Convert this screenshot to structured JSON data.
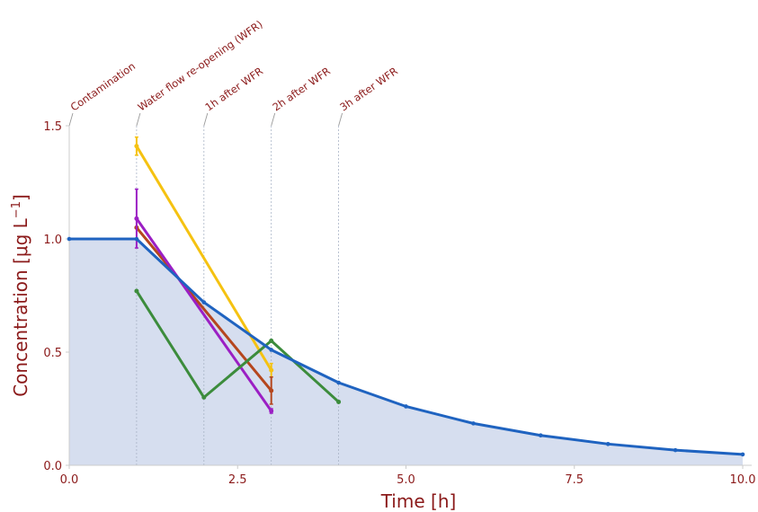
{
  "chart_data": {
    "type": "line",
    "title": "",
    "xlabel": "Time",
    "xlabel_unit": "h",
    "ylabel": "Concentration",
    "ylabel_unit": "μg L",
    "ylabel_exponent": "−1",
    "xlim": [
      0,
      10
    ],
    "ylim": [
      0,
      1.5
    ],
    "xticks": [
      "0.0",
      "2.5",
      "5.0",
      "7.5",
      "10.0"
    ],
    "yticks": [
      "0.0",
      "0.5",
      "1.0",
      "1.5"
    ],
    "grid": false,
    "events": [
      {
        "x": 0,
        "label": "Contamination"
      },
      {
        "x": 1,
        "label": "Water flow re-opening (WFR)"
      },
      {
        "x": 2,
        "label": "1h after WFR"
      },
      {
        "x": 3,
        "label": "2h after WFR"
      },
      {
        "x": 4,
        "label": "3h after WFR"
      }
    ],
    "model": {
      "color": "#1f63c0",
      "fill": "#d6deef",
      "x": [
        0,
        1,
        2,
        3,
        4,
        5,
        6,
        7,
        8,
        9,
        10
      ],
      "y": [
        1.0,
        1.0,
        0.72,
        0.51,
        0.365,
        0.26,
        0.185,
        0.132,
        0.094,
        0.067,
        0.048
      ]
    },
    "series": [
      {
        "color": "#f5c211",
        "x": [
          1,
          3
        ],
        "y": [
          1.41,
          0.42
        ],
        "err": [
          0.04,
          0.03
        ]
      },
      {
        "color": "#b5461e",
        "x": [
          1,
          3
        ],
        "y": [
          1.05,
          0.33
        ],
        "err": [
          0.0,
          0.06
        ]
      },
      {
        "color": "#9b1fc4",
        "x": [
          1,
          3
        ],
        "y": [
          1.09,
          0.24
        ],
        "err": [
          0.13,
          0.01
        ]
      },
      {
        "color": "#3c8c3c",
        "x": [
          1,
          2,
          3,
          4
        ],
        "y": [
          0.77,
          0.3,
          0.55,
          0.28
        ],
        "err": [
          0,
          0,
          0,
          0
        ]
      }
    ]
  }
}
